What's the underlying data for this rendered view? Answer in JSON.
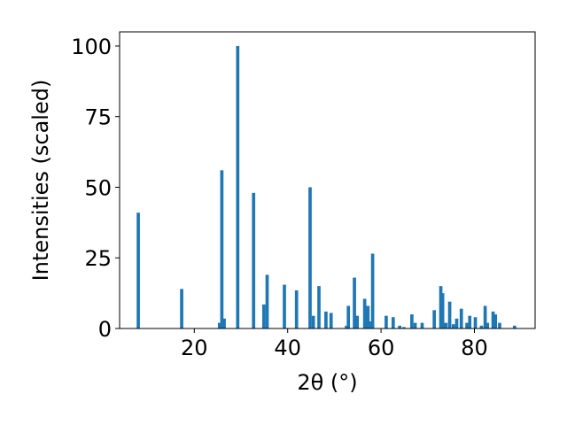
{
  "chart_data": {
    "type": "bar",
    "title": "",
    "xlabel": "2θ (°)",
    "ylabel": "Intensities (scaled)",
    "xlim": [
      4,
      93
    ],
    "ylim": [
      0,
      105
    ],
    "x_ticks": [
      20,
      40,
      60,
      80
    ],
    "y_ticks": [
      0,
      25,
      50,
      75,
      100
    ],
    "bar_color": "#1f77b4",
    "bar_width": 0.7,
    "grid": false,
    "legend": "none",
    "series": [
      {
        "x": [
          8.0,
          17.3,
          25.4,
          25.9,
          26.4,
          29.3,
          32.7,
          34.9,
          35.6,
          39.3,
          41.9,
          44.8,
          45.5,
          46.7,
          48.2,
          49.3,
          52.6,
          53.0,
          54.3,
          54.9,
          56.5,
          57.2,
          57.8,
          58.2,
          61.1,
          62.6,
          64.0,
          64.9,
          66.6,
          67.3,
          68.8,
          71.4,
          72.8,
          73.2,
          73.9,
          74.7,
          75.5,
          76.2,
          77.2,
          78.4,
          79.0,
          80.2,
          81.5,
          82.3,
          82.8,
          84.0,
          84.5,
          85.4,
          88.6
        ],
        "values": [
          41,
          14,
          2,
          56,
          3.5,
          100,
          48,
          8.5,
          19,
          15.5,
          13.5,
          50,
          4.5,
          15,
          6,
          5.5,
          1,
          8,
          18,
          4.5,
          10.5,
          8,
          2.5,
          26.5,
          4.5,
          4,
          1,
          0.5,
          5,
          2,
          2,
          6.5,
          15,
          12.5,
          2,
          9.5,
          1.5,
          3.5,
          7,
          2,
          4.5,
          4,
          1,
          8,
          2,
          6,
          5,
          2,
          1
        ]
      }
    ]
  }
}
